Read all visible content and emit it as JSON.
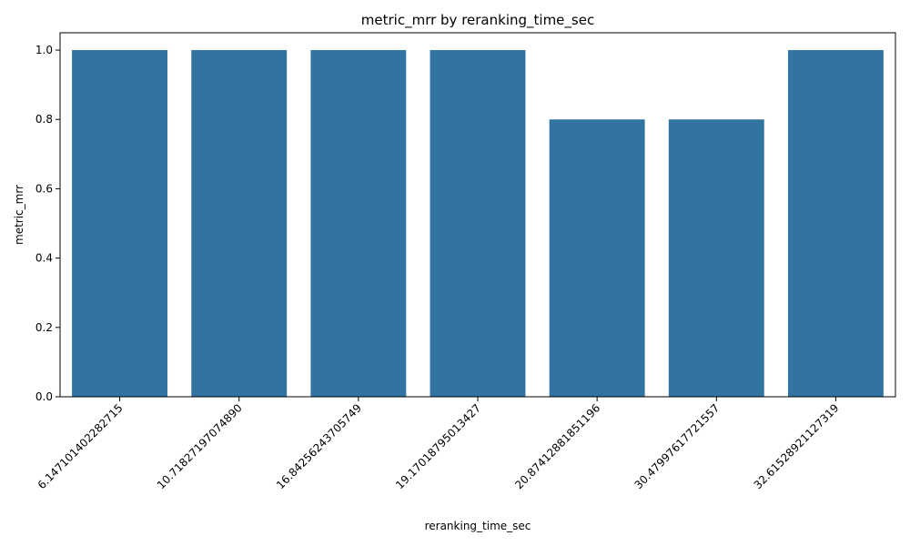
{
  "chart_data": {
    "type": "bar",
    "title": "metric_mrr by reranking_time_sec",
    "xlabel": "reranking_time_sec",
    "ylabel": "metric_mrr",
    "categories": [
      "6.147101402282715",
      "10.71827197074890",
      "16.84256243705749",
      "19.17018795013427",
      "20.87412881851196",
      "30.47997617721557",
      "32.61528921127319"
    ],
    "values": [
      1.0,
      1.0,
      1.0,
      1.0,
      0.8,
      0.8,
      1.0
    ],
    "ylim": [
      0,
      1.05
    ],
    "yticks": [
      "0.0",
      "0.2",
      "0.4",
      "0.6",
      "0.8",
      "1.0"
    ],
    "grid": false,
    "legend": "none",
    "colors": {
      "bar": "#3274a1",
      "axis": "#000000",
      "background": "#ffffff"
    }
  }
}
